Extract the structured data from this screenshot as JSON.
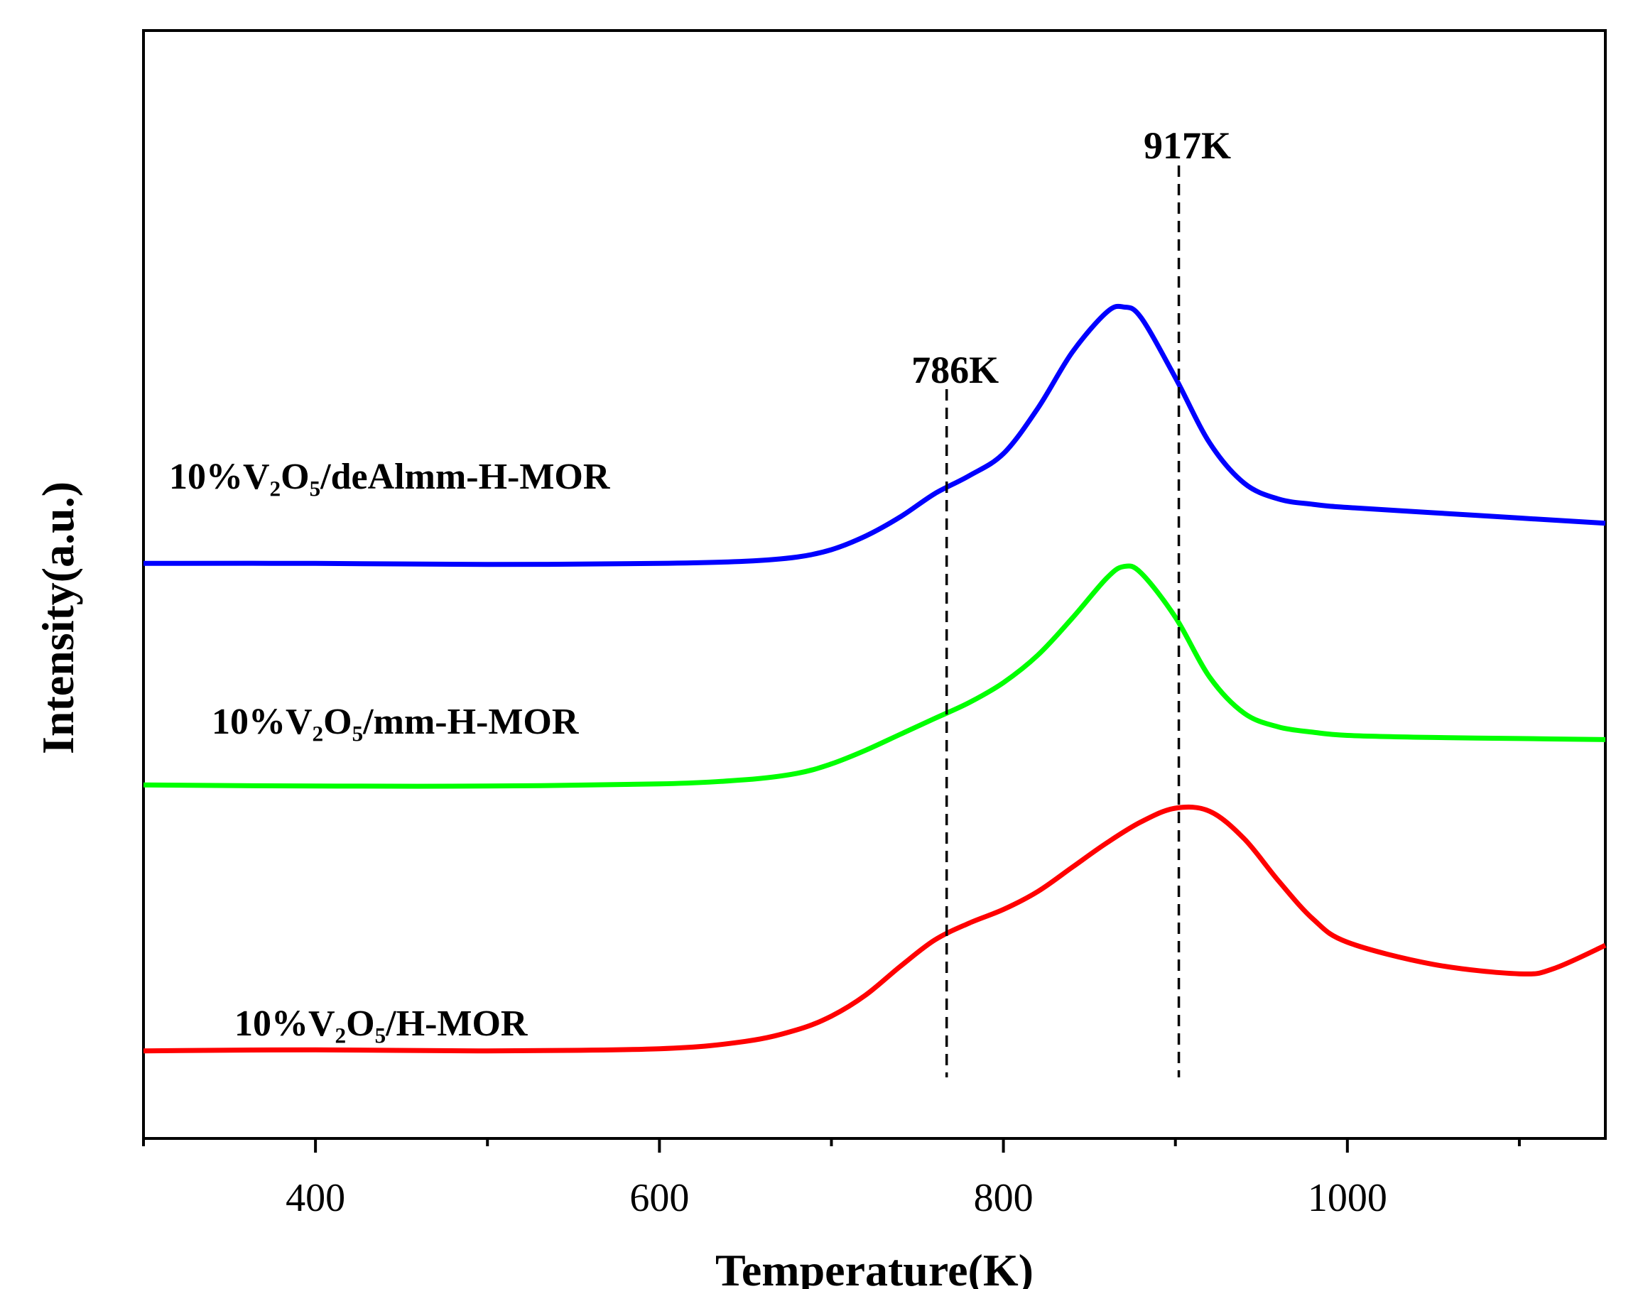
{
  "chart_data": {
    "type": "line",
    "title": "",
    "xlabel": "Temperature(K)",
    "ylabel": "Intensity(a.u.)",
    "xlim": [
      300,
      1150
    ],
    "ylim": [
      0,
      1.05
    ],
    "x_ticks": [
      400,
      600,
      800,
      1000
    ],
    "x_tick_labels": [
      "400",
      "600",
      "800",
      "1000"
    ],
    "x_minor_ticks": [
      300,
      500,
      700,
      900,
      1100
    ],
    "y_ticks_shown": false,
    "grid": false,
    "legend": "none",
    "series": [
      {
        "name": "10%V₂O₅/deAlmm-H-MOR",
        "color": "#0000ff",
        "x": [
          300,
          400,
          500,
          600,
          650,
          680,
          700,
          720,
          740,
          760,
          780,
          800,
          820,
          840,
          860,
          870,
          880,
          900,
          920,
          940,
          960,
          980,
          1000,
          1050,
          1100,
          1150
        ],
        "y": [
          0.545,
          0.545,
          0.544,
          0.545,
          0.547,
          0.551,
          0.558,
          0.571,
          0.589,
          0.611,
          0.628,
          0.649,
          0.692,
          0.745,
          0.783,
          0.788,
          0.778,
          0.721,
          0.659,
          0.621,
          0.606,
          0.601,
          0.598,
          0.593,
          0.588,
          0.583
        ]
      },
      {
        "name": "10%V₂O₅/mm-H-MOR",
        "color": "#00ff00",
        "x": [
          300,
          400,
          500,
          600,
          650,
          680,
          700,
          720,
          740,
          760,
          780,
          800,
          820,
          840,
          860,
          870,
          880,
          900,
          920,
          940,
          960,
          980,
          1000,
          1050,
          1100,
          1150
        ],
        "y": [
          0.335,
          0.334,
          0.334,
          0.336,
          0.34,
          0.346,
          0.355,
          0.368,
          0.383,
          0.398,
          0.413,
          0.432,
          0.458,
          0.493,
          0.531,
          0.542,
          0.536,
          0.494,
          0.437,
          0.403,
          0.39,
          0.385,
          0.382,
          0.38,
          0.379,
          0.378
        ]
      },
      {
        "name": "10%V₂O₅/H-MOR",
        "color": "#ff0000",
        "x": [
          300,
          400,
          500,
          600,
          650,
          680,
          700,
          720,
          740,
          760,
          780,
          800,
          820,
          840,
          860,
          880,
          900,
          920,
          940,
          960,
          980,
          1000,
          1050,
          1100,
          1120,
          1150
        ],
        "y": [
          0.083,
          0.084,
          0.083,
          0.085,
          0.092,
          0.103,
          0.116,
          0.136,
          0.163,
          0.188,
          0.204,
          0.217,
          0.234,
          0.257,
          0.28,
          0.3,
          0.313,
          0.31,
          0.284,
          0.244,
          0.208,
          0.186,
          0.165,
          0.156,
          0.161,
          0.183
        ]
      }
    ],
    "annotations": [
      {
        "text": "786K",
        "x": 767,
        "style": "dashed vertical line"
      },
      {
        "text": "917K",
        "x": 902,
        "style": "dashed vertical line"
      }
    ]
  },
  "colors": {
    "axes": "#000000",
    "dashed_lines": "#000000",
    "background": "#ffffff"
  }
}
